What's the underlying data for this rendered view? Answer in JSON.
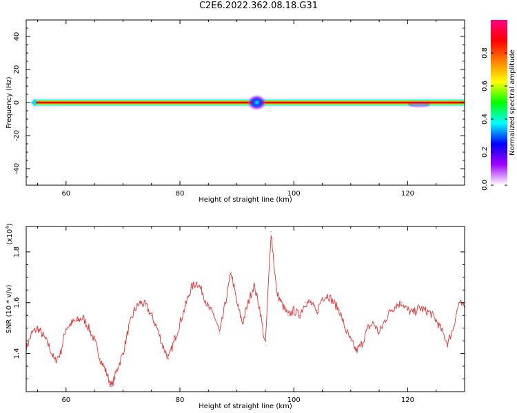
{
  "figure": {
    "title": "C2E6.2022.362.08.18.G31"
  },
  "chart_data": [
    {
      "type": "heatmap",
      "title": "C2E6.2022.362.08.18.G31",
      "xlabel": "Height of straight line (km)",
      "ylabel": "Frequency (Hz)",
      "xlim": [
        53,
        130
      ],
      "ylim": [
        -50,
        50
      ],
      "x_ticks": [
        60,
        80,
        100,
        120
      ],
      "y_ticks": [
        -40,
        -20,
        0,
        20,
        40
      ],
      "x_tick_labels": [
        "60",
        "80",
        "100",
        "120"
      ],
      "y_tick_labels": [
        "-40",
        "-20",
        "0",
        "20",
        "40"
      ],
      "colorbar": {
        "label": "Normalized spectral amplitude",
        "range": [
          0,
          1
        ],
        "ticks": [
          0.0,
          0.2,
          0.4,
          0.6,
          0.8
        ],
        "tick_labels": [
          "0.0",
          "0.2",
          "0.4",
          "0.6",
          "0.8"
        ],
        "colors": [
          "#ffffff",
          "#a000ff",
          "#0000ff",
          "#00ffff",
          "#00ff00",
          "#ffff00",
          "#ff8000",
          "#ff0000",
          "#ff0080"
        ]
      },
      "band": {
        "center_hz": 0,
        "half_width_hz": 2,
        "x_start": 54,
        "x_end": 130
      },
      "grid": false
    },
    {
      "type": "line",
      "xlabel": "Height of straight line (km)",
      "ylabel": "SNR (10 * v/v)",
      "y_multiplier_label": "(x10",
      "y_multiplier_exp": "4",
      "y_multiplier_close": ")",
      "xlim": [
        53,
        130
      ],
      "ylim": [
        1.25,
        1.9
      ],
      "x_ticks": [
        60,
        80,
        100,
        120
      ],
      "y_ticks": [
        1.4,
        1.6,
        1.8
      ],
      "x_tick_labels": [
        "60",
        "80",
        "100",
        "120"
      ],
      "y_tick_labels": [
        "1.4",
        "1.6",
        "1.8"
      ],
      "series": [
        {
          "color": "#e83030",
          "x": [
            53,
            54,
            55,
            56,
            57,
            58,
            59,
            60,
            61,
            62,
            63,
            64,
            65,
            66,
            67,
            68,
            69,
            70,
            71,
            72,
            73,
            74,
            75,
            76,
            77,
            78,
            79,
            80,
            81,
            82,
            83,
            84,
            85,
            86,
            87,
            88,
            89,
            90,
            91,
            92,
            93,
            94,
            95,
            96,
            97,
            98,
            99,
            100,
            101,
            102,
            103,
            104,
            105,
            106,
            107,
            108,
            109,
            110,
            111,
            112,
            113,
            114,
            115,
            116,
            117,
            118,
            119,
            120,
            121,
            122,
            123,
            124,
            125,
            126,
            127,
            128,
            129,
            130
          ],
          "values": [
            1.42,
            1.48,
            1.5,
            1.47,
            1.43,
            1.37,
            1.4,
            1.5,
            1.52,
            1.53,
            1.54,
            1.5,
            1.45,
            1.38,
            1.33,
            1.27,
            1.34,
            1.4,
            1.5,
            1.57,
            1.6,
            1.59,
            1.55,
            1.5,
            1.43,
            1.38,
            1.45,
            1.52,
            1.59,
            1.66,
            1.68,
            1.64,
            1.58,
            1.55,
            1.48,
            1.6,
            1.72,
            1.6,
            1.52,
            1.6,
            1.67,
            1.58,
            1.43,
            1.88,
            1.64,
            1.59,
            1.55,
            1.57,
            1.55,
            1.6,
            1.6,
            1.56,
            1.62,
            1.63,
            1.6,
            1.57,
            1.5,
            1.45,
            1.41,
            1.44,
            1.5,
            1.52,
            1.48,
            1.53,
            1.57,
            1.59,
            1.6,
            1.57,
            1.56,
            1.58,
            1.57,
            1.56,
            1.53,
            1.49,
            1.44,
            1.5,
            1.6,
            1.58
          ]
        }
      ],
      "grid": false
    }
  ]
}
